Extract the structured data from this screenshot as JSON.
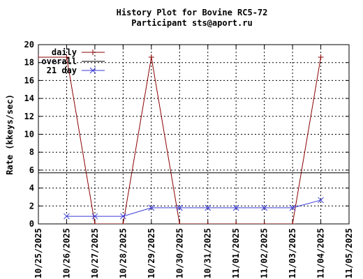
{
  "chart_data": {
    "type": "line",
    "title": "History Plot for Bovine RC5-72",
    "subtitle": "Participant sts@aport.ru",
    "ylabel": "Rate (kkeys/sec)",
    "xlabel": "",
    "ylim": [
      0,
      20
    ],
    "xlim": [
      "10/25/2025",
      "11/05/2025"
    ],
    "grid": true,
    "legend_position": "top-left",
    "x_tick_labels": [
      "10/25/2025",
      "10/26/2025",
      "10/27/2025",
      "10/28/2025",
      "10/29/2025",
      "10/30/2025",
      "10/31/2025",
      "11/01/2025",
      "11/02/2025",
      "11/03/2025",
      "11/04/2025",
      "11/05/2025"
    ],
    "y_tick_labels": [
      "0",
      "2",
      "4",
      "6",
      "8",
      "10",
      "12",
      "14",
      "16",
      "18",
      "20"
    ],
    "series": [
      {
        "name": "daily",
        "color": "#8b0000",
        "marker": "plus",
        "x": [
          "10/25/2025",
          "10/26/2025",
          "10/27/2025",
          "10/28/2025",
          "10/29/2025",
          "10/30/2025",
          "10/31/2025",
          "11/01/2025",
          "11/02/2025",
          "11/03/2025",
          "11/04/2025"
        ],
        "values": [
          18.6,
          18.6,
          0,
          0,
          18.6,
          0,
          0,
          0,
          0,
          0,
          18.6
        ]
      },
      {
        "name": "overall",
        "color": "#000000",
        "marker": "none",
        "x": [
          "10/25/2025",
          "11/05/2025"
        ],
        "values": [
          5.7,
          5.7
        ]
      },
      {
        "name": "21 day",
        "color": "#3a3ad8",
        "marker": "cross",
        "x": [
          "10/26/2025",
          "10/27/2025",
          "10/28/2025",
          "10/29/2025",
          "10/30/2025",
          "10/31/2025",
          "11/01/2025",
          "11/02/2025",
          "11/03/2025",
          "11/04/2025"
        ],
        "values": [
          0.85,
          0.85,
          0.85,
          1.8,
          1.8,
          1.8,
          1.8,
          1.8,
          1.8,
          2.65
        ]
      }
    ]
  }
}
